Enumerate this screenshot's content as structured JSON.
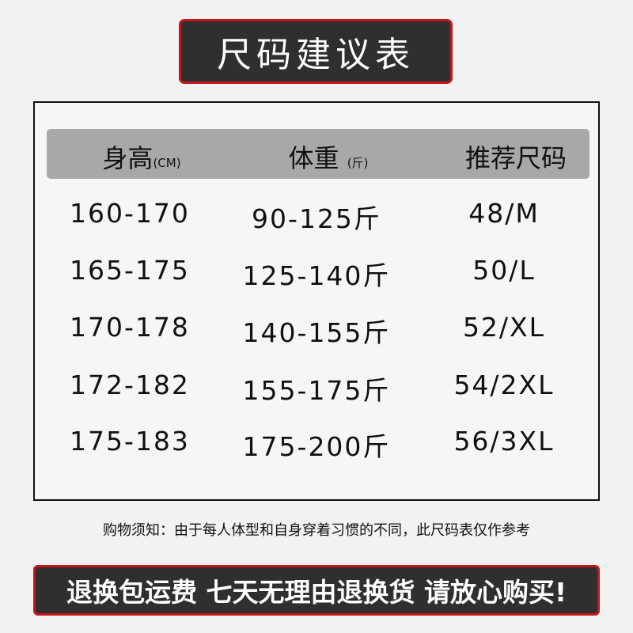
{
  "title": "尺码建议表",
  "table": {
    "headers": [
      {
        "label": "身高",
        "unit": "(CM)"
      },
      {
        "label": "体重",
        "unit": "(斤)"
      },
      {
        "label": "推荐尺码",
        "unit": ""
      }
    ],
    "rows": [
      [
        "160-170",
        "90-125斤",
        "48/M"
      ],
      [
        "165-175",
        "125-140斤",
        "50/L"
      ],
      [
        "170-178",
        "140-155斤",
        "52/XL"
      ],
      [
        "172-182",
        "155-175斤",
        "54/2XL"
      ],
      [
        "175-183",
        "175-200斤",
        "56/3XL"
      ]
    ]
  },
  "notice": "购物须知：由于每人体型和自身穿着习惯的不同，此尺码表仅作参考",
  "banner": "退换包运费 七天无理由退换货 请放心购买!",
  "colors": {
    "dark": "#2f2f2f",
    "accent_red": "#c4161c",
    "header_gray": "#a8a8a8"
  }
}
